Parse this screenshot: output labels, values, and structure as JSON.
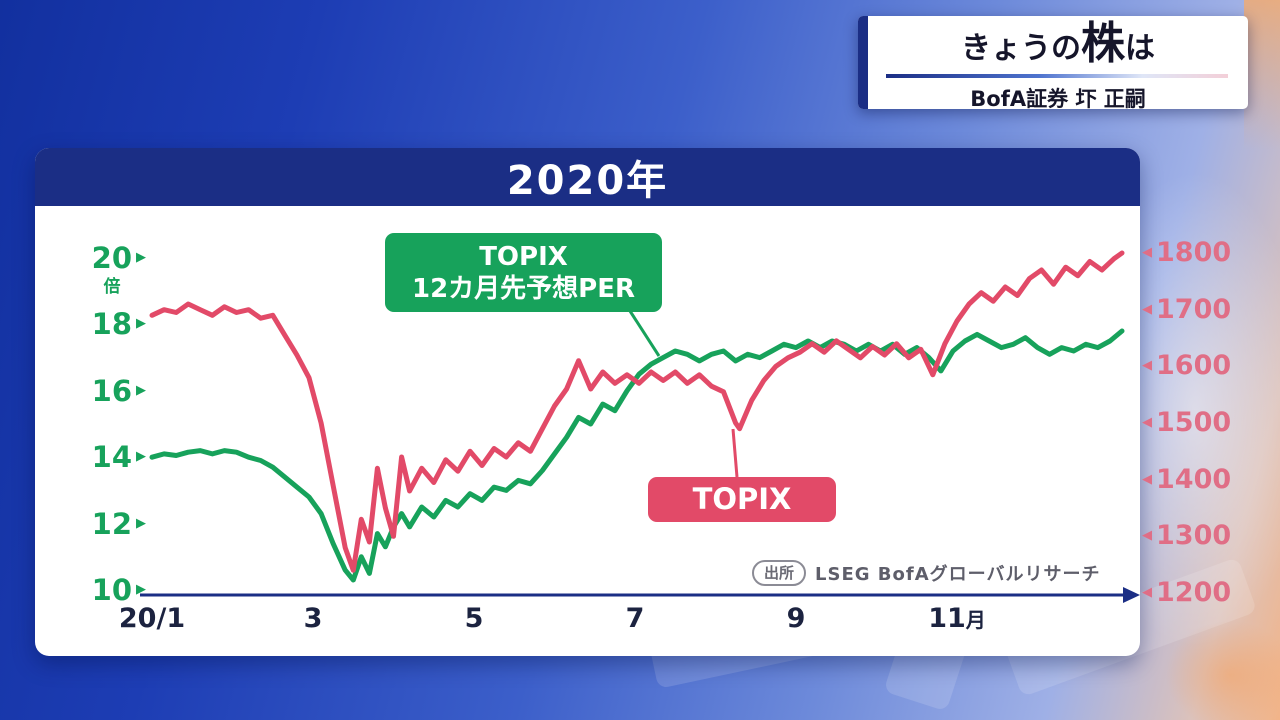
{
  "header": {
    "title_pre": "きょうの",
    "title_emph": "株",
    "title_post": "は",
    "presenter": "BofA証券 圷 正嗣"
  },
  "chart": {
    "title": "2020年",
    "left_axis": {
      "unit": "倍",
      "ticks": [
        20,
        18,
        16,
        14,
        12,
        10
      ]
    },
    "right_axis": {
      "ticks": [
        1800,
        1700,
        1600,
        1500,
        1400,
        1300,
        1200
      ]
    },
    "x_axis": {
      "ticks": [
        {
          "label": "20/1",
          "suffix": "",
          "month": 0
        },
        {
          "label": "3",
          "suffix": "",
          "month": 2
        },
        {
          "label": "5",
          "suffix": "",
          "month": 4
        },
        {
          "label": "7",
          "suffix": "",
          "month": 6
        },
        {
          "label": "9",
          "suffix": "",
          "month": 8
        },
        {
          "label": "11",
          "suffix": "月",
          "month": 10
        }
      ]
    },
    "annotations": {
      "per_line1": "TOPIX",
      "per_line2": "12カ月先予想PER",
      "topix": "TOPIX"
    },
    "source_label": "出所",
    "source_text": "LSEG BofAグローバルリサーチ",
    "colors": {
      "per_green": "#17a25b",
      "topix_red": "#e24a68",
      "right_axis_pink": "#e06e86",
      "navy": "#1b2e85"
    }
  },
  "chart_data": {
    "type": "line",
    "title": "2020年",
    "x_encoding": "months since 2020-01-01 (0 = early Jan, 12 = end of Dec)",
    "x_ticks": [
      "20/1",
      "3",
      "5",
      "7",
      "9",
      "11月"
    ],
    "left_axis": {
      "label": "TOPIX 12カ月先予想PER",
      "unit": "倍",
      "min": 10,
      "max": 20,
      "ticks": [
        10,
        12,
        14,
        16,
        18,
        20
      ]
    },
    "right_axis": {
      "label": "TOPIX",
      "min": 1200,
      "max": 1800,
      "ticks": [
        1200,
        1300,
        1400,
        1500,
        1600,
        1700,
        1800
      ]
    },
    "source": "出所 LSEG BofAグローバルリサーチ",
    "legend_position": "in-chart callout labels",
    "grid": false,
    "series": [
      {
        "name": "TOPIX 12カ月先予想PER",
        "axis": "left",
        "unit": "倍",
        "color": "#17a25b",
        "points": [
          [
            0.0,
            14.0
          ],
          [
            0.15,
            14.1
          ],
          [
            0.3,
            14.05
          ],
          [
            0.45,
            14.15
          ],
          [
            0.6,
            14.2
          ],
          [
            0.75,
            14.1
          ],
          [
            0.9,
            14.2
          ],
          [
            1.05,
            14.15
          ],
          [
            1.2,
            14.0
          ],
          [
            1.35,
            13.9
          ],
          [
            1.5,
            13.7
          ],
          [
            1.65,
            13.4
          ],
          [
            1.8,
            13.1
          ],
          [
            1.95,
            12.8
          ],
          [
            2.1,
            12.3
          ],
          [
            2.25,
            11.4
          ],
          [
            2.4,
            10.6
          ],
          [
            2.5,
            10.3
          ],
          [
            2.6,
            11.0
          ],
          [
            2.7,
            10.5
          ],
          [
            2.8,
            11.7
          ],
          [
            2.9,
            11.3
          ],
          [
            3.0,
            11.9
          ],
          [
            3.1,
            12.3
          ],
          [
            3.2,
            11.9
          ],
          [
            3.35,
            12.5
          ],
          [
            3.5,
            12.2
          ],
          [
            3.65,
            12.7
          ],
          [
            3.8,
            12.5
          ],
          [
            3.95,
            12.9
          ],
          [
            4.1,
            12.7
          ],
          [
            4.25,
            13.1
          ],
          [
            4.4,
            13.0
          ],
          [
            4.55,
            13.3
          ],
          [
            4.7,
            13.2
          ],
          [
            4.85,
            13.6
          ],
          [
            5.0,
            14.1
          ],
          [
            5.15,
            14.6
          ],
          [
            5.3,
            15.2
          ],
          [
            5.45,
            15.0
          ],
          [
            5.6,
            15.6
          ],
          [
            5.75,
            15.4
          ],
          [
            5.9,
            16.0
          ],
          [
            6.05,
            16.5
          ],
          [
            6.2,
            16.8
          ],
          [
            6.35,
            17.0
          ],
          [
            6.5,
            17.2
          ],
          [
            6.65,
            17.1
          ],
          [
            6.8,
            16.9
          ],
          [
            6.95,
            17.1
          ],
          [
            7.1,
            17.2
          ],
          [
            7.25,
            16.9
          ],
          [
            7.4,
            17.1
          ],
          [
            7.55,
            17.0
          ],
          [
            7.7,
            17.2
          ],
          [
            7.85,
            17.4
          ],
          [
            8.0,
            17.3
          ],
          [
            8.15,
            17.5
          ],
          [
            8.3,
            17.3
          ],
          [
            8.45,
            17.5
          ],
          [
            8.6,
            17.4
          ],
          [
            8.75,
            17.2
          ],
          [
            8.9,
            17.4
          ],
          [
            9.05,
            17.2
          ],
          [
            9.2,
            17.4
          ],
          [
            9.35,
            17.1
          ],
          [
            9.5,
            17.3
          ],
          [
            9.65,
            17.0
          ],
          [
            9.8,
            16.6
          ],
          [
            9.95,
            17.2
          ],
          [
            10.1,
            17.5
          ],
          [
            10.25,
            17.7
          ],
          [
            10.4,
            17.5
          ],
          [
            10.55,
            17.3
          ],
          [
            10.7,
            17.4
          ],
          [
            10.85,
            17.6
          ],
          [
            11.0,
            17.3
          ],
          [
            11.15,
            17.1
          ],
          [
            11.3,
            17.3
          ],
          [
            11.45,
            17.2
          ],
          [
            11.6,
            17.4
          ],
          [
            11.75,
            17.3
          ],
          [
            11.9,
            17.5
          ],
          [
            12.05,
            17.8
          ]
        ]
      },
      {
        "name": "TOPIX",
        "axis": "right",
        "color": "#e24a68",
        "points": [
          [
            0.0,
            1690
          ],
          [
            0.15,
            1700
          ],
          [
            0.3,
            1695
          ],
          [
            0.45,
            1710
          ],
          [
            0.6,
            1700
          ],
          [
            0.75,
            1690
          ],
          [
            0.9,
            1705
          ],
          [
            1.05,
            1695
          ],
          [
            1.2,
            1700
          ],
          [
            1.35,
            1685
          ],
          [
            1.5,
            1690
          ],
          [
            1.65,
            1655
          ],
          [
            1.8,
            1620
          ],
          [
            1.95,
            1580
          ],
          [
            2.1,
            1500
          ],
          [
            2.25,
            1390
          ],
          [
            2.4,
            1280
          ],
          [
            2.5,
            1240
          ],
          [
            2.6,
            1330
          ],
          [
            2.7,
            1290
          ],
          [
            2.8,
            1420
          ],
          [
            2.9,
            1350
          ],
          [
            3.0,
            1300
          ],
          [
            3.1,
            1440
          ],
          [
            3.2,
            1380
          ],
          [
            3.35,
            1420
          ],
          [
            3.5,
            1395
          ],
          [
            3.65,
            1435
          ],
          [
            3.8,
            1415
          ],
          [
            3.95,
            1450
          ],
          [
            4.1,
            1425
          ],
          [
            4.25,
            1455
          ],
          [
            4.4,
            1440
          ],
          [
            4.55,
            1465
          ],
          [
            4.7,
            1450
          ],
          [
            4.85,
            1490
          ],
          [
            5.0,
            1530
          ],
          [
            5.15,
            1560
          ],
          [
            5.3,
            1610
          ],
          [
            5.45,
            1560
          ],
          [
            5.6,
            1590
          ],
          [
            5.75,
            1570
          ],
          [
            5.9,
            1585
          ],
          [
            6.05,
            1570
          ],
          [
            6.2,
            1590
          ],
          [
            6.35,
            1575
          ],
          [
            6.5,
            1590
          ],
          [
            6.65,
            1570
          ],
          [
            6.8,
            1585
          ],
          [
            6.95,
            1565
          ],
          [
            7.1,
            1555
          ],
          [
            7.25,
            1500
          ],
          [
            7.3,
            1490
          ],
          [
            7.45,
            1540
          ],
          [
            7.6,
            1575
          ],
          [
            7.75,
            1600
          ],
          [
            7.9,
            1615
          ],
          [
            8.05,
            1625
          ],
          [
            8.2,
            1640
          ],
          [
            8.35,
            1625
          ],
          [
            8.5,
            1645
          ],
          [
            8.65,
            1630
          ],
          [
            8.8,
            1615
          ],
          [
            8.95,
            1635
          ],
          [
            9.1,
            1620
          ],
          [
            9.25,
            1640
          ],
          [
            9.4,
            1615
          ],
          [
            9.55,
            1630
          ],
          [
            9.7,
            1585
          ],
          [
            9.85,
            1640
          ],
          [
            10.0,
            1680
          ],
          [
            10.15,
            1710
          ],
          [
            10.3,
            1730
          ],
          [
            10.45,
            1715
          ],
          [
            10.6,
            1740
          ],
          [
            10.75,
            1725
          ],
          [
            10.9,
            1755
          ],
          [
            11.05,
            1770
          ],
          [
            11.2,
            1745
          ],
          [
            11.35,
            1775
          ],
          [
            11.5,
            1760
          ],
          [
            11.65,
            1785
          ],
          [
            11.8,
            1770
          ],
          [
            11.95,
            1790
          ],
          [
            12.05,
            1800
          ]
        ]
      }
    ]
  }
}
